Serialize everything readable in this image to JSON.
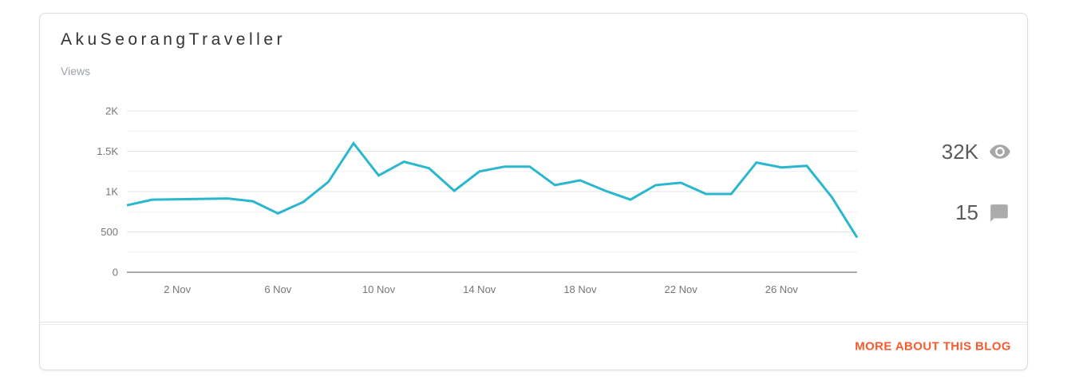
{
  "card": {
    "title": "AkuSeorangTraveller",
    "subtitle": "Views"
  },
  "stats": {
    "views": {
      "value": "32K",
      "icon": "eye-icon"
    },
    "comments": {
      "value": "15",
      "icon": "comment-icon"
    }
  },
  "footer": {
    "link_label": "MORE ABOUT THIS BLOG",
    "link_color": "#f55b2d"
  },
  "colors": {
    "accent_orange": "#f55b2d",
    "chart_line": "#2ab7ce",
    "icon_gray": "#a6a6a6"
  },
  "chart_data": {
    "type": "line",
    "title": "Views",
    "xlabel": "",
    "ylabel": "Views",
    "grid": "horizontal",
    "legend_position": "none",
    "line_color": "#2ab7ce",
    "ylim": [
      0,
      2000
    ],
    "y_ticks": [
      0,
      500,
      1000,
      1500,
      2000
    ],
    "y_tick_labels": [
      "0",
      "500",
      "1K",
      "1.5K",
      "2K"
    ],
    "y_minor_ticks": [
      250,
      750,
      1250,
      1750
    ],
    "x_tick_labels": [
      "2 Nov",
      "6 Nov",
      "10 Nov",
      "14 Nov",
      "18 Nov",
      "22 Nov",
      "26 Nov"
    ],
    "x_tick_indices": [
      2,
      6,
      10,
      14,
      18,
      22,
      26
    ],
    "series": [
      {
        "name": "Views",
        "values": [
          830,
          900,
          905,
          910,
          915,
          880,
          730,
          870,
          1120,
          1600,
          1200,
          1370,
          1290,
          1010,
          1250,
          1310,
          1310,
          1080,
          1140,
          1010,
          900,
          1080,
          1110,
          970,
          970,
          1360,
          1300,
          1320,
          930,
          430
        ]
      }
    ]
  }
}
